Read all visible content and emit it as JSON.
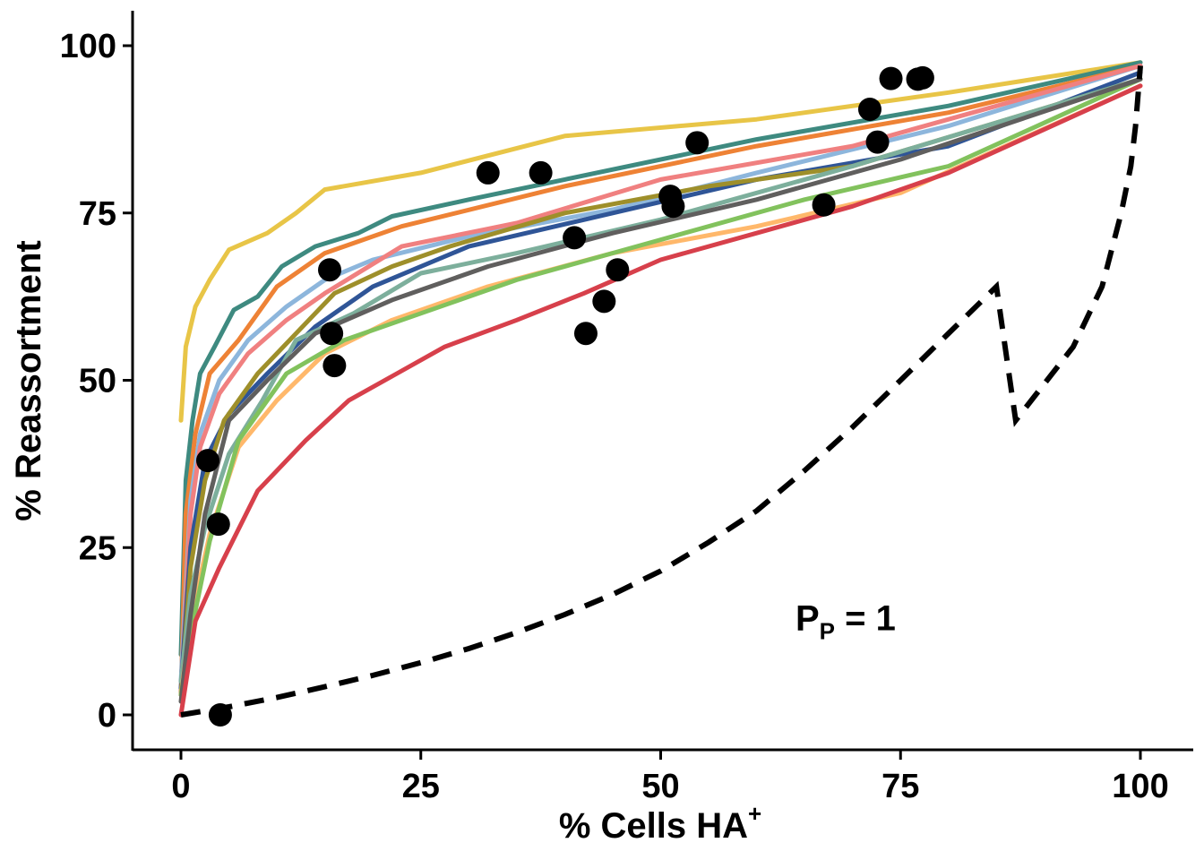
{
  "chart_data": {
    "type": "line",
    "xlabel": "% Cells HA",
    "xlabel_sup": "+",
    "ylabel": "% Reassortment",
    "xlim": [
      0,
      100
    ],
    "ylim": [
      0,
      100
    ],
    "x_ticks": [
      "0",
      "25",
      "50",
      "75",
      "100"
    ],
    "y_ticks": [
      "0",
      "25",
      "50",
      "75",
      "100"
    ],
    "grid": false,
    "legend": "none",
    "annotation": {
      "main": "P",
      "sub": "P",
      "rest": " = 1",
      "x": 76,
      "y": 14.5
    },
    "series": [
      {
        "color": "#E8C547",
        "points": [
          [
            0,
            44
          ],
          [
            0.5,
            55
          ],
          [
            1.5,
            61
          ],
          [
            3,
            65
          ],
          [
            5,
            69.5
          ],
          [
            9,
            72
          ],
          [
            12,
            75
          ],
          [
            15,
            78.5
          ],
          [
            25,
            81
          ],
          [
            40,
            86.5
          ],
          [
            60,
            89
          ],
          [
            80,
            93
          ],
          [
            100,
            97.5
          ]
        ]
      },
      {
        "color": "#3E8A80",
        "points": [
          [
            0,
            9
          ],
          [
            0.5,
            35
          ],
          [
            1.2,
            44
          ],
          [
            2,
            51
          ],
          [
            3.5,
            55
          ],
          [
            5.5,
            60.5
          ],
          [
            8,
            62.5
          ],
          [
            10.5,
            67
          ],
          [
            14,
            70
          ],
          [
            18.5,
            72
          ],
          [
            22,
            74.5
          ],
          [
            30,
            77
          ],
          [
            40,
            80
          ],
          [
            60,
            86
          ],
          [
            80,
            91
          ],
          [
            100,
            97.5
          ]
        ]
      },
      {
        "color": "#EE8235",
        "points": [
          [
            0,
            3
          ],
          [
            0.5,
            30
          ],
          [
            1.5,
            42
          ],
          [
            3,
            51
          ],
          [
            6,
            56
          ],
          [
            10,
            64
          ],
          [
            15,
            69
          ],
          [
            23,
            73
          ],
          [
            40,
            79
          ],
          [
            60,
            85
          ],
          [
            80,
            90
          ],
          [
            100,
            97
          ]
        ]
      },
      {
        "color": "#8DB6DC",
        "points": [
          [
            0,
            5
          ],
          [
            1,
            32
          ],
          [
            2,
            42
          ],
          [
            4,
            50
          ],
          [
            7,
            56
          ],
          [
            11,
            61
          ],
          [
            15,
            65
          ],
          [
            20,
            68
          ],
          [
            30,
            71.5
          ],
          [
            45,
            75.5
          ],
          [
            60,
            81
          ],
          [
            80,
            88
          ],
          [
            100,
            97
          ]
        ]
      },
      {
        "color": "#F08080",
        "points": [
          [
            0,
            3
          ],
          [
            1,
            30
          ],
          [
            2,
            40
          ],
          [
            4,
            48
          ],
          [
            7,
            54
          ],
          [
            11,
            59
          ],
          [
            15,
            63
          ],
          [
            23,
            70
          ],
          [
            35,
            73.5
          ],
          [
            50,
            80
          ],
          [
            70,
            85
          ],
          [
            100,
            97
          ]
        ]
      },
      {
        "color": "#2F5597",
        "points": [
          [
            0,
            4
          ],
          [
            1,
            25
          ],
          [
            2.5,
            38
          ],
          [
            5,
            45
          ],
          [
            9,
            51
          ],
          [
            14,
            58
          ],
          [
            20,
            64
          ],
          [
            30,
            70
          ],
          [
            45,
            75
          ],
          [
            60,
            80
          ],
          [
            80,
            85
          ],
          [
            100,
            96
          ]
        ]
      },
      {
        "color": "#9E8F2A",
        "points": [
          [
            0,
            3
          ],
          [
            1,
            22
          ],
          [
            2.5,
            35
          ],
          [
            4.5,
            44
          ],
          [
            8,
            51
          ],
          [
            12,
            57
          ],
          [
            16,
            63
          ],
          [
            22,
            67
          ],
          [
            28,
            70
          ],
          [
            40,
            75
          ],
          [
            55,
            79
          ],
          [
            70,
            82
          ],
          [
            100,
            95
          ]
        ]
      },
      {
        "color": "#7DAF9C",
        "points": [
          [
            0,
            5
          ],
          [
            1,
            18
          ],
          [
            2.5,
            28
          ],
          [
            5,
            39
          ],
          [
            8.5,
            47
          ],
          [
            12,
            56
          ],
          [
            18,
            60
          ],
          [
            25,
            66
          ],
          [
            35,
            69
          ],
          [
            50,
            74
          ],
          [
            70,
            82
          ],
          [
            100,
            95
          ]
        ]
      },
      {
        "color": "#FFB86B",
        "points": [
          [
            0,
            3
          ],
          [
            1,
            14
          ],
          [
            3,
            27
          ],
          [
            6,
            40
          ],
          [
            10,
            47
          ],
          [
            15,
            54
          ],
          [
            22,
            59
          ],
          [
            32,
            64
          ],
          [
            45,
            69
          ],
          [
            60,
            73
          ],
          [
            75,
            78
          ],
          [
            100,
            94
          ]
        ]
      },
      {
        "color": "#82C25D",
        "points": [
          [
            0,
            3
          ],
          [
            1,
            12
          ],
          [
            3,
            26
          ],
          [
            6,
            41
          ],
          [
            11,
            51
          ],
          [
            17,
            56
          ],
          [
            25,
            60
          ],
          [
            35,
            65
          ],
          [
            50,
            71
          ],
          [
            65,
            77
          ],
          [
            80,
            82
          ],
          [
            100,
            95
          ]
        ]
      },
      {
        "color": "#605F5E",
        "points": [
          [
            0,
            2
          ],
          [
            1,
            15
          ],
          [
            2.5,
            30
          ],
          [
            5,
            44
          ],
          [
            9,
            50
          ],
          [
            14,
            57
          ],
          [
            22,
            62
          ],
          [
            32,
            67
          ],
          [
            45,
            72
          ],
          [
            60,
            77
          ],
          [
            75,
            83
          ],
          [
            100,
            95
          ]
        ]
      },
      {
        "color": "#D7404B",
        "points": [
          [
            0,
            0
          ],
          [
            1.5,
            14
          ],
          [
            4,
            22
          ],
          [
            8,
            33.5
          ],
          [
            13,
            41
          ],
          [
            17.5,
            47
          ],
          [
            22.5,
            51
          ],
          [
            27.5,
            55
          ],
          [
            35,
            59
          ],
          [
            42,
            63
          ],
          [
            50,
            68
          ],
          [
            60,
            72
          ],
          [
            70,
            76
          ],
          [
            80,
            81
          ],
          [
            100,
            94
          ]
        ]
      }
    ],
    "dashed_line": {
      "color": "#000000",
      "points": [
        [
          0,
          0
        ],
        [
          5,
          1.2
        ],
        [
          10,
          2.6
        ],
        [
          15,
          4.2
        ],
        [
          20,
          5.9
        ],
        [
          25,
          7.8
        ],
        [
          30,
          9.9
        ],
        [
          35,
          12.3
        ],
        [
          40,
          15
        ],
        [
          45,
          18
        ],
        [
          50,
          21.5
        ],
        [
          55,
          25.8
        ],
        [
          60,
          30.5
        ],
        [
          65,
          36.5
        ],
        [
          70,
          43
        ],
        [
          75,
          50
        ],
        [
          80,
          57
        ],
        [
          85,
          64
        ],
        [
          87,
          44
        ],
        [
          93,
          55
        ],
        [
          96,
          64
        ],
        [
          98,
          75
        ],
        [
          99,
          82
        ],
        [
          99.5,
          88
        ],
        [
          100,
          97
        ]
      ]
    },
    "scatter": {
      "color": "#000000",
      "points": [
        [
          2.8,
          38
        ],
        [
          3.9,
          28.5
        ],
        [
          4.1,
          0
        ],
        [
          15.5,
          66.5
        ],
        [
          15.7,
          57
        ],
        [
          16,
          52.2
        ],
        [
          32,
          81
        ],
        [
          37.5,
          81
        ],
        [
          41,
          71.3
        ],
        [
          42.2,
          57
        ],
        [
          44.1,
          61.8
        ],
        [
          45.5,
          66.5
        ],
        [
          51,
          77.5
        ],
        [
          51.3,
          76
        ],
        [
          53.8,
          85.5
        ],
        [
          67,
          76.2
        ],
        [
          71.8,
          90.5
        ],
        [
          72.6,
          85.6
        ],
        [
          74,
          95.1
        ],
        [
          76.8,
          95
        ],
        [
          77.3,
          95.2
        ]
      ]
    }
  }
}
